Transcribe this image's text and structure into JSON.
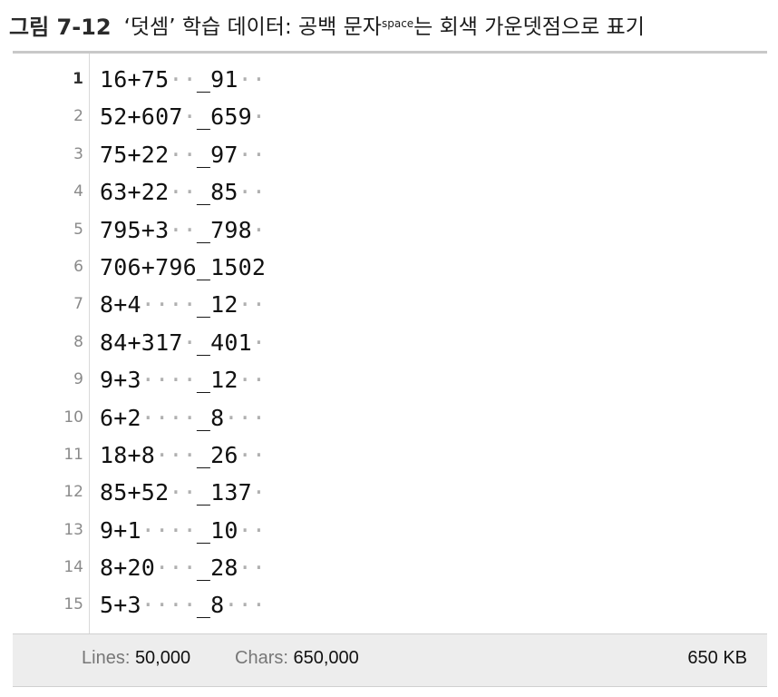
{
  "caption": {
    "figure": "그림 7-12",
    "text_before": "‘덧셈’ 학습 데이터: 공백 문자",
    "superscript": "space",
    "text_after": "는 회색 가운뎃점으로 표기"
  },
  "editor": {
    "lines": [
      {
        "num": "1",
        "text": "16+75  _91  "
      },
      {
        "num": "2",
        "text": "52+607 _659 "
      },
      {
        "num": "3",
        "text": "75+22  _97  "
      },
      {
        "num": "4",
        "text": "63+22  _85  "
      },
      {
        "num": "5",
        "text": "795+3  _798 "
      },
      {
        "num": "6",
        "text": "706+796_1502"
      },
      {
        "num": "7",
        "text": "8+4    _12  "
      },
      {
        "num": "8",
        "text": "84+317 _401 "
      },
      {
        "num": "9",
        "text": "9+3    _12  "
      },
      {
        "num": "10",
        "text": "6+2    _8   "
      },
      {
        "num": "11",
        "text": "18+8   _26  "
      },
      {
        "num": "12",
        "text": "85+52  _137 "
      },
      {
        "num": "13",
        "text": "9+1    _10  "
      },
      {
        "num": "14",
        "text": "8+20   _28  "
      },
      {
        "num": "15",
        "text": "5+3    _8   "
      }
    ],
    "space_glyph": "·"
  },
  "status": {
    "lines_label": "Lines:",
    "lines_value": "50,000",
    "chars_label": "Chars:",
    "chars_value": "650,000",
    "size": "650 KB"
  }
}
